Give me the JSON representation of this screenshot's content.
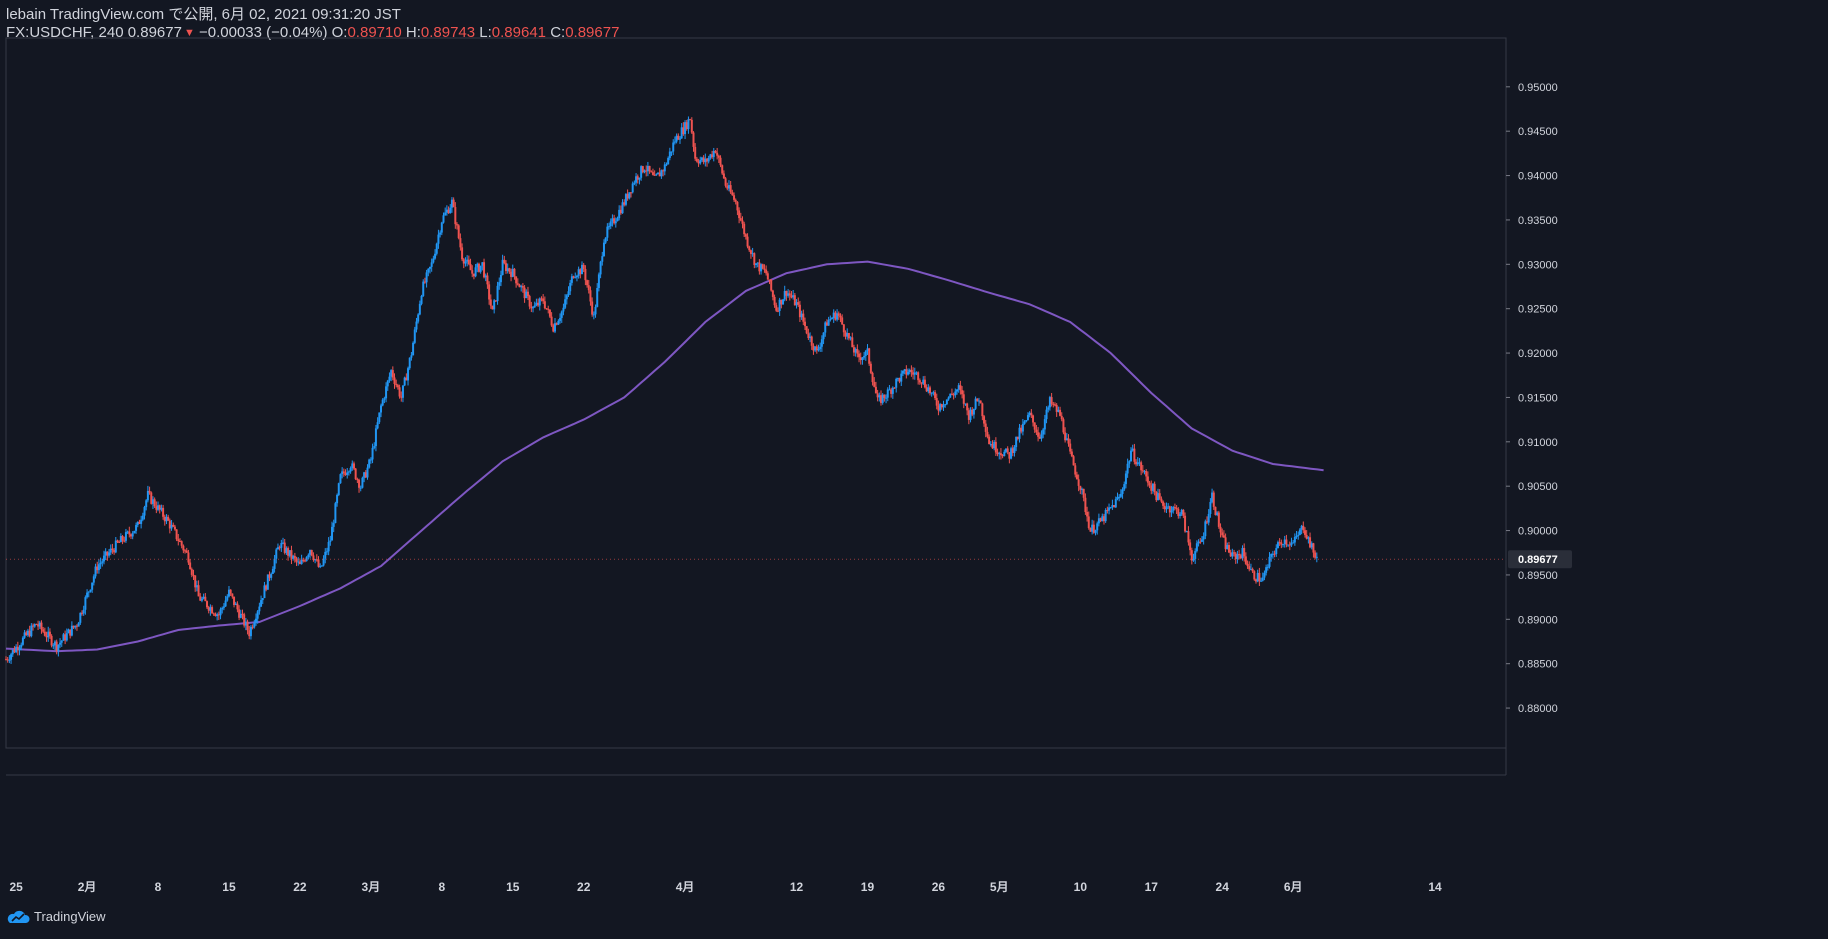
{
  "header": {
    "publish_line": "lebain TradingView.com で公開, 6月 02, 2021 09:31:20 JST",
    "symbol": "FX:USDCHF, 240",
    "last": "0.89677",
    "change": "−0.00033 (−0.04%)",
    "o_label": "O:",
    "o": "0.89710",
    "h_label": "H:",
    "h": "0.89743",
    "l_label": "L:",
    "l": "0.89641",
    "c_label": "C:",
    "c": "0.89677"
  },
  "footer": {
    "brand": "TradingView",
    "icon": "tradingview-cloud-icon"
  },
  "colors": {
    "background": "#131722",
    "up": "#2196f3",
    "down": "#ef5350",
    "ma": "#7e57c2",
    "axis_text": "#d1d4dc",
    "price_tag_bg": "#2a2e39"
  },
  "chart_data": {
    "type": "candlestick",
    "symbol": "FX:USDCHF",
    "timeframe": "240",
    "ylim": [
      0.8755,
      0.9555
    ],
    "y_ticks": [
      0.88,
      0.885,
      0.89,
      0.895,
      0.9,
      0.905,
      0.91,
      0.915,
      0.92,
      0.925,
      0.93,
      0.935,
      0.94,
      0.945,
      0.95
    ],
    "y_tick_labels": [
      "0.88000",
      "0.88500",
      "0.89000",
      "0.89500",
      "0.90000",
      "0.90500",
      "0.91000",
      "0.91500",
      "0.92000",
      "0.92500",
      "0.93000",
      "0.93500",
      "0.94000",
      "0.94500",
      "0.95000"
    ],
    "x_labels": [
      {
        "label": "25",
        "day": 0
      },
      {
        "label": "2月",
        "day": 7
      },
      {
        "label": "8",
        "day": 14
      },
      {
        "label": "15",
        "day": 21
      },
      {
        "label": "22",
        "day": 28
      },
      {
        "label": "3月",
        "day": 35
      },
      {
        "label": "8",
        "day": 42
      },
      {
        "label": "15",
        "day": 49
      },
      {
        "label": "22",
        "day": 56
      },
      {
        "label": "4月",
        "day": 66
      },
      {
        "label": "12",
        "day": 77
      },
      {
        "label": "19",
        "day": 84
      },
      {
        "label": "26",
        "day": 91
      },
      {
        "label": "5月",
        "day": 97
      },
      {
        "label": "10",
        "day": 105
      },
      {
        "label": "17",
        "day": 112
      },
      {
        "label": "24",
        "day": 119
      },
      {
        "label": "6月",
        "day": 126
      },
      {
        "label": "14",
        "day": 140
      }
    ],
    "x_range_days": [
      -1,
      147
    ],
    "last_day": 128,
    "close_path": [
      {
        "day": -1,
        "close": 0.8855
      },
      {
        "day": 2,
        "close": 0.8895
      },
      {
        "day": 4,
        "close": 0.887
      },
      {
        "day": 6,
        "close": 0.8895
      },
      {
        "day": 8,
        "close": 0.896
      },
      {
        "day": 10,
        "close": 0.8985
      },
      {
        "day": 12,
        "close": 0.9005
      },
      {
        "day": 13,
        "close": 0.904
      },
      {
        "day": 15,
        "close": 0.901
      },
      {
        "day": 17,
        "close": 0.897
      },
      {
        "day": 18,
        "close": 0.8925
      },
      {
        "day": 20,
        "close": 0.8905
      },
      {
        "day": 21,
        "close": 0.893
      },
      {
        "day": 23,
        "close": 0.8885
      },
      {
        "day": 25,
        "close": 0.895
      },
      {
        "day": 26,
        "close": 0.8985
      },
      {
        "day": 28,
        "close": 0.896
      },
      {
        "day": 29,
        "close": 0.898
      },
      {
        "day": 30,
        "close": 0.8955
      },
      {
        "day": 31,
        "close": 0.899
      },
      {
        "day": 32,
        "close": 0.906
      },
      {
        "day": 33,
        "close": 0.9075
      },
      {
        "day": 34,
        "close": 0.905
      },
      {
        "day": 35,
        "close": 0.908
      },
      {
        "day": 36,
        "close": 0.914
      },
      {
        "day": 37,
        "close": 0.918
      },
      {
        "day": 38,
        "close": 0.915
      },
      {
        "day": 39,
        "close": 0.92
      },
      {
        "day": 40,
        "close": 0.927
      },
      {
        "day": 41,
        "close": 0.93
      },
      {
        "day": 42,
        "close": 0.935
      },
      {
        "day": 43,
        "close": 0.937
      },
      {
        "day": 44,
        "close": 0.931
      },
      {
        "day": 45,
        "close": 0.929
      },
      {
        "day": 46,
        "close": 0.93
      },
      {
        "day": 47,
        "close": 0.9245
      },
      {
        "day": 48,
        "close": 0.93
      },
      {
        "day": 49,
        "close": 0.929
      },
      {
        "day": 50,
        "close": 0.927
      },
      {
        "day": 51,
        "close": 0.925
      },
      {
        "day": 52,
        "close": 0.926
      },
      {
        "day": 53,
        "close": 0.923
      },
      {
        "day": 54,
        "close": 0.925
      },
      {
        "day": 55,
        "close": 0.929
      },
      {
        "day": 56,
        "close": 0.9295
      },
      {
        "day": 57,
        "close": 0.924
      },
      {
        "day": 58,
        "close": 0.933
      },
      {
        "day": 59,
        "close": 0.935
      },
      {
        "day": 60,
        "close": 0.937
      },
      {
        "day": 61,
        "close": 0.9395
      },
      {
        "day": 62,
        "close": 0.941
      },
      {
        "day": 63,
        "close": 0.9395
      },
      {
        "day": 64,
        "close": 0.941
      },
      {
        "day": 65,
        "close": 0.944
      },
      {
        "day": 66,
        "close": 0.9455
      },
      {
        "day": 66.5,
        "close": 0.9465
      },
      {
        "day": 67,
        "close": 0.942
      },
      {
        "day": 68,
        "close": 0.9415
      },
      {
        "day": 69,
        "close": 0.943
      },
      {
        "day": 70,
        "close": 0.939
      },
      {
        "day": 71,
        "close": 0.937
      },
      {
        "day": 72,
        "close": 0.933
      },
      {
        "day": 73,
        "close": 0.93
      },
      {
        "day": 74,
        "close": 0.929
      },
      {
        "day": 75,
        "close": 0.925
      },
      {
        "day": 76,
        "close": 0.927
      },
      {
        "day": 77,
        "close": 0.9255
      },
      {
        "day": 78,
        "close": 0.9225
      },
      {
        "day": 79,
        "close": 0.92
      },
      {
        "day": 80,
        "close": 0.9235
      },
      {
        "day": 81,
        "close": 0.9245
      },
      {
        "day": 82,
        "close": 0.922
      },
      {
        "day": 83,
        "close": 0.9195
      },
      {
        "day": 84,
        "close": 0.92
      },
      {
        "day": 85,
        "close": 0.9145
      },
      {
        "day": 86,
        "close": 0.9155
      },
      {
        "day": 87,
        "close": 0.917
      },
      {
        "day": 88,
        "close": 0.918
      },
      {
        "day": 89,
        "close": 0.9175
      },
      {
        "day": 90,
        "close": 0.916
      },
      {
        "day": 91,
        "close": 0.914
      },
      {
        "day": 92,
        "close": 0.915
      },
      {
        "day": 93,
        "close": 0.916
      },
      {
        "day": 94,
        "close": 0.913
      },
      {
        "day": 95,
        "close": 0.915
      },
      {
        "day": 96,
        "close": 0.91
      },
      {
        "day": 97,
        "close": 0.909
      },
      {
        "day": 98,
        "close": 0.9085
      },
      {
        "day": 99,
        "close": 0.911
      },
      {
        "day": 100,
        "close": 0.913
      },
      {
        "day": 101,
        "close": 0.9105
      },
      {
        "day": 102,
        "close": 0.9145
      },
      {
        "day": 103,
        "close": 0.913
      },
      {
        "day": 104,
        "close": 0.9085
      },
      {
        "day": 105,
        "close": 0.905
      },
      {
        "day": 106,
        "close": 0.9
      },
      {
        "day": 107,
        "close": 0.901
      },
      {
        "day": 108,
        "close": 0.9025
      },
      {
        "day": 109,
        "close": 0.904
      },
      {
        "day": 110,
        "close": 0.909
      },
      {
        "day": 111,
        "close": 0.907
      },
      {
        "day": 112,
        "close": 0.905
      },
      {
        "day": 113,
        "close": 0.903
      },
      {
        "day": 114,
        "close": 0.9025
      },
      {
        "day": 115,
        "close": 0.902
      },
      {
        "day": 116,
        "close": 0.897
      },
      {
        "day": 117,
        "close": 0.899
      },
      {
        "day": 118,
        "close": 0.904
      },
      {
        "day": 119,
        "close": 0.899
      },
      {
        "day": 120,
        "close": 0.897
      },
      {
        "day": 121,
        "close": 0.8975
      },
      {
        "day": 122,
        "close": 0.895
      },
      {
        "day": 123,
        "close": 0.8945
      },
      {
        "day": 124,
        "close": 0.8975
      },
      {
        "day": 125,
        "close": 0.899
      },
      {
        "day": 126,
        "close": 0.8985
      },
      {
        "day": 127,
        "close": 0.9005
      },
      {
        "day": 128,
        "close": 0.8975
      },
      {
        "day": 128.5,
        "close": 0.89677
      }
    ],
    "moving_average": [
      {
        "day": -1,
        "value": 0.8867
      },
      {
        "day": 4,
        "value": 0.8864
      },
      {
        "day": 8,
        "value": 0.8866
      },
      {
        "day": 12,
        "value": 0.8875
      },
      {
        "day": 16,
        "value": 0.8888
      },
      {
        "day": 20,
        "value": 0.8893
      },
      {
        "day": 24,
        "value": 0.8897
      },
      {
        "day": 28,
        "value": 0.8915
      },
      {
        "day": 32,
        "value": 0.8935
      },
      {
        "day": 36,
        "value": 0.896
      },
      {
        "day": 40,
        "value": 0.9
      },
      {
        "day": 44,
        "value": 0.904
      },
      {
        "day": 48,
        "value": 0.9078
      },
      {
        "day": 52,
        "value": 0.9105
      },
      {
        "day": 56,
        "value": 0.9125
      },
      {
        "day": 60,
        "value": 0.915
      },
      {
        "day": 64,
        "value": 0.919
      },
      {
        "day": 68,
        "value": 0.9235
      },
      {
        "day": 72,
        "value": 0.927
      },
      {
        "day": 76,
        "value": 0.929
      },
      {
        "day": 80,
        "value": 0.93
      },
      {
        "day": 84,
        "value": 0.9303
      },
      {
        "day": 88,
        "value": 0.9295
      },
      {
        "day": 92,
        "value": 0.9282
      },
      {
        "day": 96,
        "value": 0.9268
      },
      {
        "day": 100,
        "value": 0.9255
      },
      {
        "day": 104,
        "value": 0.9235
      },
      {
        "day": 108,
        "value": 0.92
      },
      {
        "day": 112,
        "value": 0.9155
      },
      {
        "day": 116,
        "value": 0.9115
      },
      {
        "day": 120,
        "value": 0.909
      },
      {
        "day": 124,
        "value": 0.9075
      },
      {
        "day": 129,
        "value": 0.9068
      }
    ],
    "last_price_label": "0.89677",
    "last_price": 0.89677
  }
}
